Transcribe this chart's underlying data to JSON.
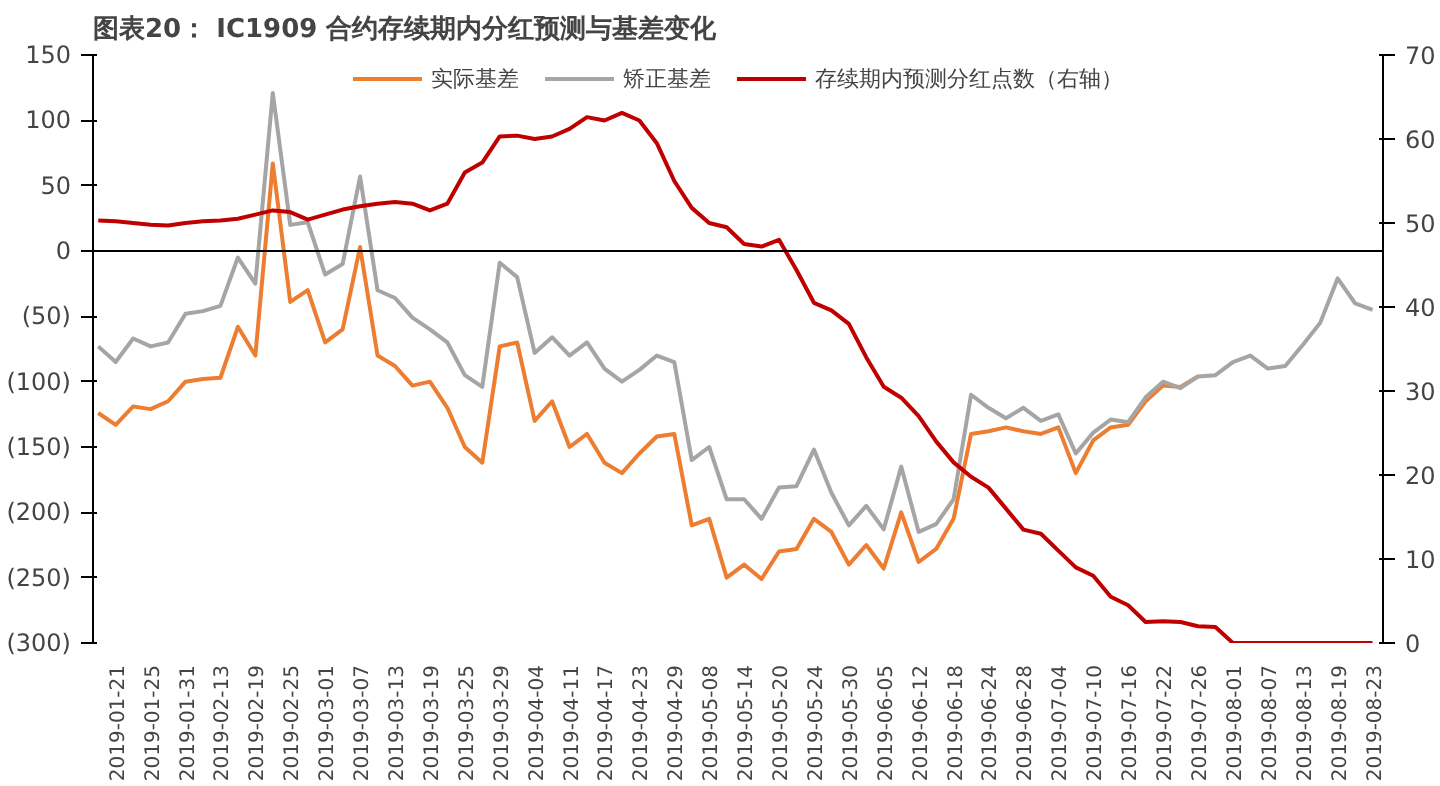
{
  "chart_data": {
    "type": "line",
    "title": "图表20： IC1909 合约存续期内分红预测与基差变化",
    "categories": [
      null,
      "2019-01-21",
      null,
      "2019-01-25",
      null,
      "2019-01-31",
      null,
      "2019-02-13",
      null,
      "2019-02-19",
      null,
      "2019-02-25",
      null,
      "2019-03-01",
      null,
      "2019-03-07",
      null,
      "2019-03-13",
      null,
      "2019-03-19",
      null,
      "2019-03-25",
      null,
      "2019-03-29",
      null,
      "2019-04-04",
      null,
      "2019-04-11",
      null,
      "2019-04-17",
      null,
      "2019-04-23",
      null,
      "2019-04-29",
      null,
      "2019-05-08",
      null,
      "2019-05-14",
      null,
      "2019-05-20",
      null,
      "2019-05-24",
      null,
      "2019-05-30",
      null,
      "2019-06-05",
      null,
      "2019-06-12",
      null,
      "2019-06-18",
      null,
      "2019-06-24",
      null,
      "2019-06-28",
      null,
      "2019-07-04",
      null,
      "2019-07-10",
      null,
      "2019-07-16",
      null,
      "2019-07-22",
      null,
      "2019-07-26",
      null,
      "2019-08-01",
      null,
      "2019-08-07",
      null,
      "2019-08-13",
      null,
      "2019-08-19",
      null,
      "2019-08-23"
    ],
    "series": [
      {
        "name": "实际基差",
        "color": "#ed7d31",
        "values": [
          -124,
          -133,
          -119,
          -121,
          -115,
          -100,
          -98,
          -97,
          -58,
          -80,
          67,
          -39,
          -30,
          -70,
          -60,
          3,
          -80,
          -88,
          -103,
          -100,
          -120,
          -150,
          -162,
          -73,
          -70,
          -130,
          -115,
          -150,
          -140,
          -162,
          -170,
          -155,
          -142,
          -140,
          -210,
          -205,
          -250,
          -240,
          -251,
          -230,
          -228,
          -205,
          -215,
          -240,
          -225,
          -243,
          -200,
          -238,
          -228,
          -205,
          -140,
          -138,
          -135,
          -138,
          -140,
          -135,
          -170,
          -145,
          -135,
          -133,
          -115,
          -103,
          -104,
          -96,
          null,
          null,
          null,
          null,
          null,
          null,
          null,
          null,
          null,
          null
        ]
      },
      {
        "name": "矫正基差",
        "color": "#a5a5a5",
        "values": [
          -73,
          -85,
          -67,
          -73,
          -70,
          -48,
          -46,
          -42,
          -5,
          -25,
          121,
          20,
          22,
          -18,
          -10,
          57,
          -30,
          -36,
          -51,
          -60,
          -70,
          -95,
          -104,
          -9,
          -20,
          -78,
          -66,
          -80,
          -70,
          -90,
          -100,
          -91,
          -80,
          -85,
          -160,
          -150,
          -190,
          -190,
          -205,
          -181,
          -180,
          -152,
          -185,
          -210,
          -195,
          -213,
          -165,
          -215,
          -209,
          -190,
          -110,
          -120,
          -128,
          -120,
          -130,
          -125,
          -155,
          -139,
          -129,
          -131,
          -112,
          -100,
          -105,
          -96,
          -95,
          -85,
          -80,
          -90,
          -88,
          -72,
          -55,
          -21,
          -40,
          -45
        ]
      },
      {
        "name": "存续期内预测分红点数（右轴）",
        "color": "#c00000",
        "axis": "y2",
        "values": [
          50.3,
          50.2,
          50.0,
          49.8,
          49.7,
          50,
          50.2,
          50.3,
          50.5,
          51,
          51.5,
          51.3,
          50.4,
          51,
          51.6,
          52,
          52.3,
          52.5,
          52.3,
          51.5,
          52.3,
          56,
          57.2,
          60.3,
          60.4,
          60,
          60.3,
          61.2,
          62.6,
          62.2,
          63.1,
          62.2,
          59.5,
          55,
          51.8,
          50,
          49.5,
          47.5,
          47.2,
          48,
          44.4,
          40.5,
          39.6,
          38,
          34,
          30.5,
          29.2,
          27,
          24,
          21.5,
          19.8,
          18.5,
          16,
          13.5,
          13,
          11,
          9,
          8,
          5.5,
          4.5,
          2.5,
          2.6,
          2.5,
          2.0,
          1.9,
          0,
          0,
          0,
          0,
          0,
          0,
          0,
          0,
          0
        ]
      }
    ],
    "ylim": [
      -300,
      150
    ],
    "yticks": [
      {
        "value": -300,
        "label": "(300)"
      },
      {
        "value": -250,
        "label": "(250)"
      },
      {
        "value": -200,
        "label": "(200)"
      },
      {
        "value": -150,
        "label": "(150)"
      },
      {
        "value": -100,
        "label": "(100)"
      },
      {
        "value": -50,
        "label": "(50)"
      },
      0,
      50,
      100,
      150
    ],
    "y2lim": [
      0,
      70
    ],
    "y2ticks": [
      0,
      10,
      20,
      30,
      40,
      50,
      60,
      70
    ],
    "legend": "top",
    "grid": false,
    "ref_lines": [
      {
        "axis": "y",
        "value": 0,
        "color": "#000000"
      }
    ],
    "line_style": "solid"
  }
}
